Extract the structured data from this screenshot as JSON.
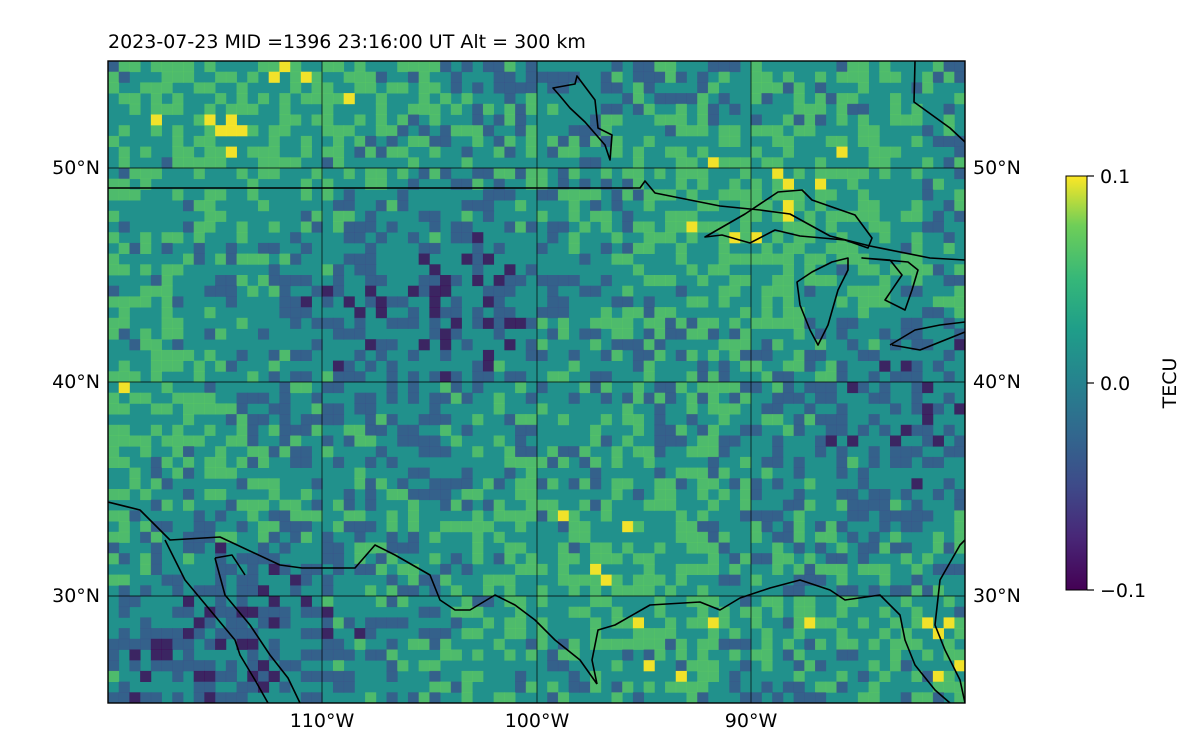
{
  "header": {
    "title": "2023-07-23  MID =1396    23:16:00  UT  Alt = 300 km"
  },
  "chart_data": {
    "type": "heatmap",
    "map_extent": {
      "lon": [
        -120,
        -80
      ],
      "lat": [
        25,
        55
      ]
    },
    "lat_ticks": [
      {
        "value": 50,
        "label": "50°N"
      },
      {
        "value": 40,
        "label": "40°N"
      },
      {
        "value": 30,
        "label": "30°N"
      }
    ],
    "lon_ticks": [
      {
        "value": -110,
        "label": "110°W"
      },
      {
        "value": -100,
        "label": "100°W"
      },
      {
        "value": -90,
        "label": "90°W"
      }
    ],
    "grid": true,
    "colormap": "viridis",
    "colorbar": {
      "label": "TECU",
      "range": [
        -0.1,
        0.1
      ],
      "ticks": [
        {
          "value": 0.1,
          "label": "0.1"
        },
        {
          "value": 0.0,
          "label": "0.0"
        },
        {
          "value": -0.1,
          "label": "−0.1"
        }
      ]
    },
    "colors": [
      "#440154",
      "#3b528b",
      "#21918c",
      "#5ec962",
      "#fde725"
    ]
  }
}
